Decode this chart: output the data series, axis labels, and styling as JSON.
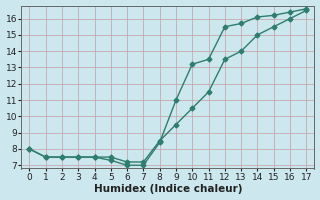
{
  "line1_x": [
    0,
    1,
    2,
    3,
    4,
    5,
    6,
    7,
    8,
    9,
    10,
    11,
    12,
    13,
    14,
    15,
    16,
    17
  ],
  "line1_y": [
    8.0,
    7.5,
    7.5,
    7.5,
    7.5,
    7.5,
    7.2,
    7.2,
    8.5,
    9.5,
    10.5,
    11.5,
    13.5,
    14.0,
    15.0,
    15.5,
    16.0,
    16.5
  ],
  "line2_x": [
    0,
    1,
    2,
    3,
    4,
    5,
    6,
    7,
    8,
    9,
    10,
    11,
    12,
    13,
    14,
    15,
    16,
    17
  ],
  "line2_y": [
    8.0,
    7.5,
    7.5,
    7.5,
    7.5,
    7.3,
    7.0,
    7.0,
    8.4,
    11.0,
    13.2,
    13.5,
    15.5,
    15.7,
    16.1,
    16.2,
    16.4,
    16.6
  ],
  "color": "#2e7d6e",
  "bg_color": "#cce8ee",
  "grid_color": "#b0d4da",
  "xlabel": "Humidex (Indice chaleur)",
  "xlim": [
    -0.5,
    17.5
  ],
  "ylim": [
    6.8,
    16.8
  ],
  "xticks": [
    0,
    1,
    2,
    3,
    4,
    5,
    6,
    7,
    8,
    9,
    10,
    11,
    12,
    13,
    14,
    15,
    16,
    17
  ],
  "yticks": [
    7,
    8,
    9,
    10,
    11,
    12,
    13,
    14,
    15,
    16
  ],
  "marker": "D",
  "markersize": 2.5,
  "linewidth": 1.0,
  "xlabel_fontsize": 7.5,
  "tick_fontsize": 6.5
}
